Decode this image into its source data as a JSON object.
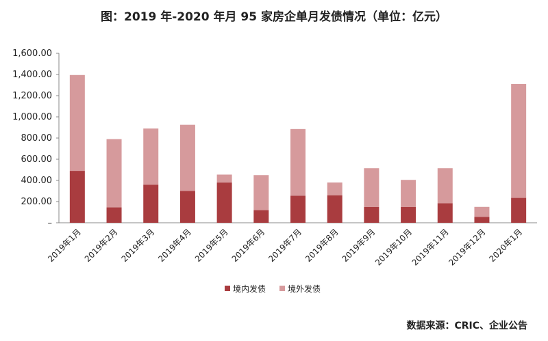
{
  "chart_data": {
    "type": "bar",
    "stacked": true,
    "title": "图：2019 年-2020 年月 95 家房企单月发债情况（单位：亿元）",
    "source": "数据来源：CRIC、企业公告",
    "categories": [
      "2019年1月",
      "2019年2月",
      "2019年3月",
      "2019年4月",
      "2019年5月",
      "2019年6月",
      "2019年7月",
      "2019年8月",
      "2019年9月",
      "2019年10月",
      "2019年11月",
      "2019年12月",
      "2020年1月"
    ],
    "series": [
      {
        "name": "境内发债",
        "color": "#a93c3f",
        "values": [
          490,
          145,
          360,
          300,
          380,
          120,
          255,
          260,
          150,
          150,
          185,
          55,
          235
        ]
      },
      {
        "name": "境外发债",
        "color": "#d69a9c",
        "values": [
          905,
          645,
          530,
          625,
          75,
          330,
          630,
          120,
          365,
          255,
          330,
          95,
          1075
        ]
      }
    ],
    "ylim": [
      0,
      1600
    ],
    "yticks": [
      "–",
      "200.00",
      "400.00",
      "600.00",
      "800.00",
      "1,000.00",
      "1,200.00",
      "1,400.00",
      "1,600.00"
    ],
    "grid": false,
    "legend_position": "bottom"
  }
}
